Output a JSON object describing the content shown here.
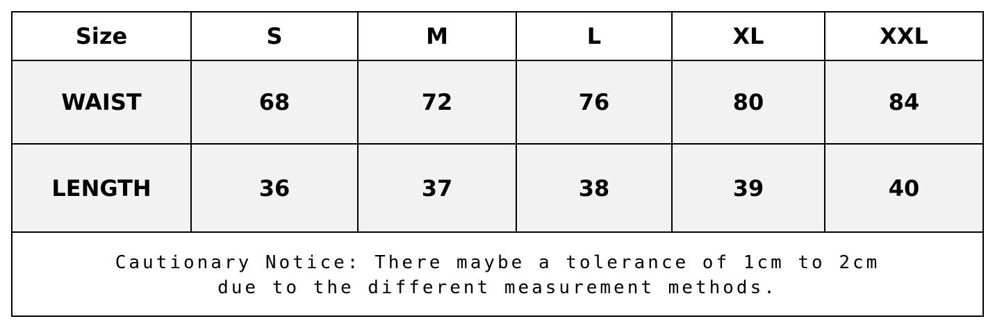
{
  "table": {
    "header": [
      "Size",
      "S",
      "M",
      "L",
      "XL",
      "XXL"
    ],
    "rows": [
      [
        "WAIST",
        68,
        72,
        76,
        80,
        84
      ],
      [
        "LENGTH",
        36,
        37,
        38,
        39,
        40
      ]
    ],
    "notice": [
      "Cautionary Notice: There maybe a tolerance of 1cm to 2cm",
      "due to the different measurement methods."
    ]
  }
}
